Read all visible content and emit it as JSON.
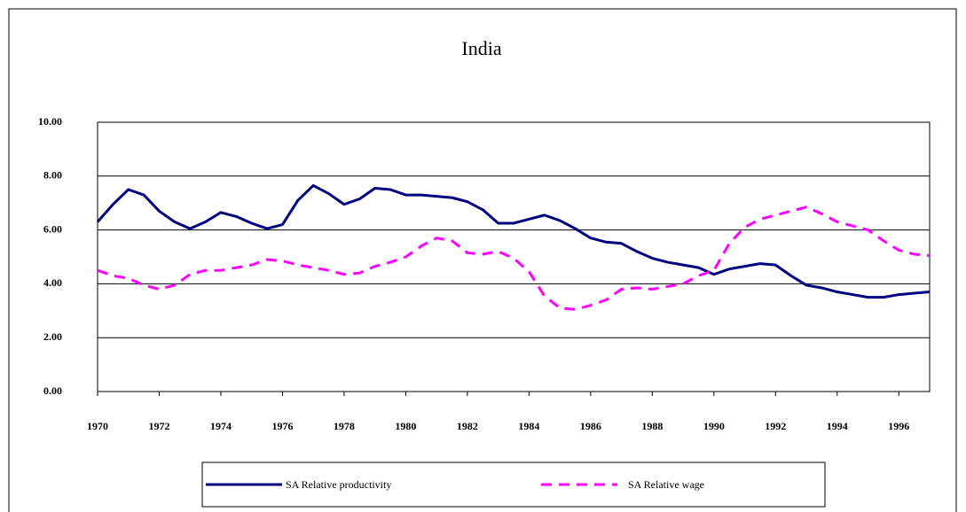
{
  "chart_data": {
    "type": "line",
    "title": "India",
    "x": [
      1970,
      1970.5,
      1971,
      1971.5,
      1972,
      1972.5,
      1973,
      1973.5,
      1974,
      1974.5,
      1975,
      1975.5,
      1976,
      1976.5,
      1977,
      1977.5,
      1978,
      1978.5,
      1979,
      1979.5,
      1980,
      1980.5,
      1981,
      1981.5,
      1982,
      1982.5,
      1983,
      1983.5,
      1984,
      1984.5,
      1985,
      1985.5,
      1986,
      1986.5,
      1987,
      1987.5,
      1988,
      1988.5,
      1989,
      1989.5,
      1990,
      1990.5,
      1991,
      1991.5,
      1992,
      1992.5,
      1993,
      1993.5,
      1994,
      1994.5,
      1995,
      1995.5,
      1996,
      1996.5,
      1997
    ],
    "series": [
      {
        "name": "SA Relative productivity",
        "color": "#000080",
        "dashed": false,
        "values": [
          6.3,
          6.95,
          7.5,
          7.3,
          6.7,
          6.3,
          6.05,
          6.3,
          6.65,
          6.5,
          6.25,
          6.05,
          6.2,
          7.1,
          7.65,
          7.35,
          6.95,
          7.15,
          7.55,
          7.5,
          7.3,
          7.3,
          7.25,
          7.2,
          7.05,
          6.75,
          6.25,
          6.25,
          6.4,
          6.55,
          6.35,
          6.05,
          5.7,
          5.55,
          5.5,
          5.2,
          4.95,
          4.8,
          4.7,
          4.6,
          4.35,
          4.55,
          4.65,
          4.75,
          4.7,
          4.3,
          3.95,
          3.85,
          3.7,
          3.6,
          3.5,
          3.5,
          3.6,
          3.65,
          3.7
        ]
      },
      {
        "name": "SA Relative wage",
        "color": "#ff00ff",
        "dashed": true,
        "values": [
          4.5,
          4.3,
          4.2,
          3.95,
          3.8,
          3.95,
          4.35,
          4.5,
          4.5,
          4.6,
          4.7,
          4.9,
          4.85,
          4.7,
          4.6,
          4.5,
          4.35,
          4.4,
          4.65,
          4.8,
          5.0,
          5.4,
          5.7,
          5.6,
          5.15,
          5.1,
          5.2,
          4.95,
          4.45,
          3.55,
          3.1,
          3.05,
          3.2,
          3.4,
          3.8,
          3.85,
          3.8,
          3.9,
          4.0,
          4.3,
          4.5,
          5.5,
          6.1,
          6.4,
          6.55,
          6.7,
          6.85,
          6.6,
          6.3,
          6.15,
          6.0,
          5.6,
          5.25,
          5.1,
          5.05
        ]
      }
    ],
    "xlim": [
      1970,
      1997
    ],
    "xticks": [
      1970,
      1972,
      1974,
      1976,
      1978,
      1980,
      1982,
      1984,
      1986,
      1988,
      1990,
      1992,
      1994,
      1996
    ],
    "ylim": [
      0,
      10
    ],
    "yticks": [
      {
        "value": 0,
        "label": "0.00"
      },
      {
        "value": 2,
        "label": "2.00"
      },
      {
        "value": 4,
        "label": "4.00"
      },
      {
        "value": 6,
        "label": "6.00"
      },
      {
        "value": 8,
        "label": "8.00"
      },
      {
        "value": 10,
        "label": "10.00"
      }
    ],
    "grid": true
  }
}
